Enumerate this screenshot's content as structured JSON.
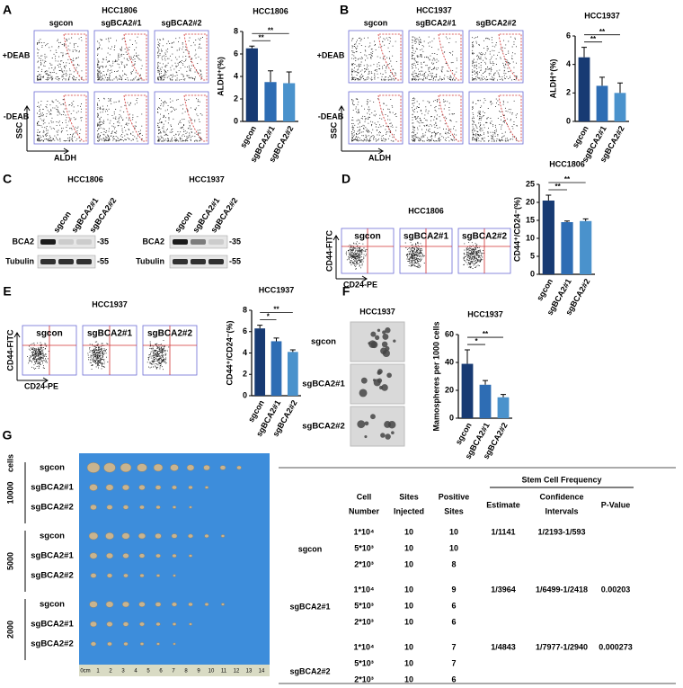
{
  "panels": {
    "A": {
      "label": "A",
      "title": "HCC1806",
      "columns": [
        "sgcon",
        "sgBCA2#1",
        "sgBCA2#2"
      ],
      "rows": [
        "+DEAB",
        "-DEAB"
      ],
      "y_axis": "SSC",
      "x_axis": "ALDH",
      "chart": {
        "type": "bar",
        "title": "HCC1806",
        "ylabel": "ALDH⁺(%)",
        "categories": [
          "sgcon",
          "sgBCA2#1",
          "sgBCA2#2"
        ],
        "values": [
          6.5,
          3.5,
          3.4
        ],
        "errors": [
          0.2,
          1.0,
          1.0
        ],
        "colors": [
          "#173a73",
          "#2e6db4",
          "#4a92cc"
        ],
        "ylim": [
          0,
          8
        ],
        "yticks": [
          0,
          2,
          4,
          6,
          8
        ],
        "significance": [
          "**",
          "**"
        ]
      }
    },
    "B": {
      "label": "B",
      "title": "HCC1937",
      "columns": [
        "sgcon",
        "sgBCA2#1",
        "sgBCA2#2"
      ],
      "rows": [
        "+DEAB",
        "-DEAB"
      ],
      "y_axis": "SSC",
      "x_axis": "ALDH",
      "chart": {
        "type": "bar",
        "title": "HCC1937",
        "ylabel": "ALDH⁺(%)",
        "categories": [
          "sgcon",
          "sgBCA2#1",
          "sgBCA2#2"
        ],
        "values": [
          4.5,
          2.5,
          2.0
        ],
        "errors": [
          0.7,
          0.6,
          0.7
        ],
        "colors": [
          "#173a73",
          "#2e6db4",
          "#4a92cc"
        ],
        "ylim": [
          0,
          6
        ],
        "yticks": [
          0,
          2,
          4,
          6
        ],
        "significance": [
          "**",
          "**"
        ]
      }
    },
    "C": {
      "label": "C",
      "blots": [
        {
          "title": "HCC1806",
          "lanes": [
            "sgcon",
            "sgBCA2#1",
            "sgBCA2#2"
          ],
          "proteins": [
            "BCA2",
            "Tubulin"
          ],
          "markers": [
            "-35",
            "-55"
          ]
        },
        {
          "title": "HCC1937",
          "lanes": [
            "sgcon",
            "sgBCA2#1",
            "sgBCA2#2"
          ],
          "proteins": [
            "BCA2",
            "Tubulin"
          ],
          "markers": [
            "-35",
            "-55"
          ]
        }
      ]
    },
    "D": {
      "label": "D",
      "title": "HCC1806",
      "columns": [
        "sgcon",
        "sgBCA2#1",
        "sgBCA2#2"
      ],
      "y_axis": "CD44-FITC",
      "x_axis": "CD24-PE",
      "chart": {
        "type": "bar",
        "title": "HCC1806",
        "ylabel": "CD44⁺/CD24⁻(%)",
        "categories": [
          "sgcon",
          "sgBCA2#1",
          "sgBCA2#2"
        ],
        "values": [
          20.5,
          14.5,
          14.8
        ],
        "errors": [
          1.5,
          0.3,
          0.6
        ],
        "colors": [
          "#173a73",
          "#2e6db4",
          "#4a92cc"
        ],
        "ylim": [
          0,
          25
        ],
        "yticks": [
          0,
          5,
          10,
          15,
          20,
          25
        ],
        "significance": [
          "**",
          "**"
        ]
      }
    },
    "E": {
      "label": "E",
      "title": "HCC1937",
      "columns": [
        "sgcon",
        "sgBCA2#1",
        "sgBCA2#2"
      ],
      "y_axis": "CD44-FITC",
      "x_axis": "CD24-PE",
      "chart": {
        "type": "bar",
        "title": "HCC1937",
        "ylabel": "CD44⁺/CD24⁻(%)",
        "categories": [
          "sgcon",
          "sgBCA2#1",
          "sgBCA2#2"
        ],
        "values": [
          6.3,
          5.1,
          4.1
        ],
        "errors": [
          0.3,
          0.3,
          0.2
        ],
        "colors": [
          "#173a73",
          "#2e6db4",
          "#4a92cc"
        ],
        "ylim": [
          0,
          8
        ],
        "yticks": [
          0,
          2,
          4,
          6,
          8
        ],
        "significance": [
          "*",
          "**"
        ]
      }
    },
    "F": {
      "label": "F",
      "title": "HCC1937",
      "rows": [
        "sgcon",
        "sgBCA2#1",
        "sgBCA2#2"
      ],
      "chart": {
        "type": "bar",
        "title": "HCC1937",
        "ylabel": "Mamospheres per 1000 cells",
        "categories": [
          "sgcon",
          "sgBCA2#1",
          "sgBCA2#2"
        ],
        "values": [
          39,
          24,
          15
        ],
        "errors": [
          10,
          3,
          2
        ],
        "colors": [
          "#173a73",
          "#2e6db4",
          "#4a92cc"
        ],
        "ylim": [
          0,
          60
        ],
        "yticks": [
          0,
          20,
          40,
          60
        ],
        "significance": [
          "*",
          "**"
        ]
      }
    },
    "G": {
      "label": "G",
      "cells_label": "cells",
      "groups": [
        {
          "count": "10000",
          "rows": [
            "sgcon",
            "sgBCA2#1",
            "sgBCA2#2"
          ]
        },
        {
          "count": "5000",
          "rows": [
            "sgcon",
            "sgBCA2#1",
            "sgBCA2#2"
          ]
        },
        {
          "count": "2000",
          "rows": [
            "sgcon",
            "sgBCA2#1",
            "sgBCA2#2"
          ]
        }
      ],
      "ruler": [
        "0cm",
        "1",
        "2",
        "3",
        "4",
        "5",
        "6",
        "7",
        "8",
        "9",
        "10",
        "11",
        "12",
        "13",
        "14"
      ],
      "table": {
        "header_group": "Stem Cell Frequency",
        "columns": [
          [
            "Cell",
            "Number"
          ],
          [
            "Sites",
            "Injected"
          ],
          [
            "Positive",
            "Sites"
          ],
          [
            "Estimate"
          ],
          [
            "Confidence",
            "Intervals"
          ],
          [
            "P-Value"
          ]
        ],
        "groups": [
          {
            "name": "sgcon",
            "rows": [
              [
                "1*10⁴",
                "10",
                "10"
              ],
              [
                "5*10³",
                "10",
                "10"
              ],
              [
                "2*10³",
                "10",
                "8"
              ]
            ],
            "estimate": "1/1141",
            "ci": "1/2193-1/593"
          },
          {
            "name": "sgBCA2#1",
            "rows": [
              [
                "1*10⁴",
                "10",
                "9"
              ],
              [
                "5*10³",
                "10",
                "6"
              ],
              [
                "2*10³",
                "10",
                "6"
              ]
            ],
            "estimate": "1/3964",
            "ci": "1/6499-1/2418",
            "p": "0.00203"
          },
          {
            "name": "sgBCA2#2",
            "rows": [
              [
                "1*10⁴",
                "10",
                "7"
              ],
              [
                "5*10³",
                "10",
                "7"
              ],
              [
                "2*10³",
                "10",
                "6"
              ]
            ],
            "estimate": "1/4843",
            "ci": "1/7977-1/2940",
            "p": "0.000273"
          }
        ]
      }
    }
  }
}
